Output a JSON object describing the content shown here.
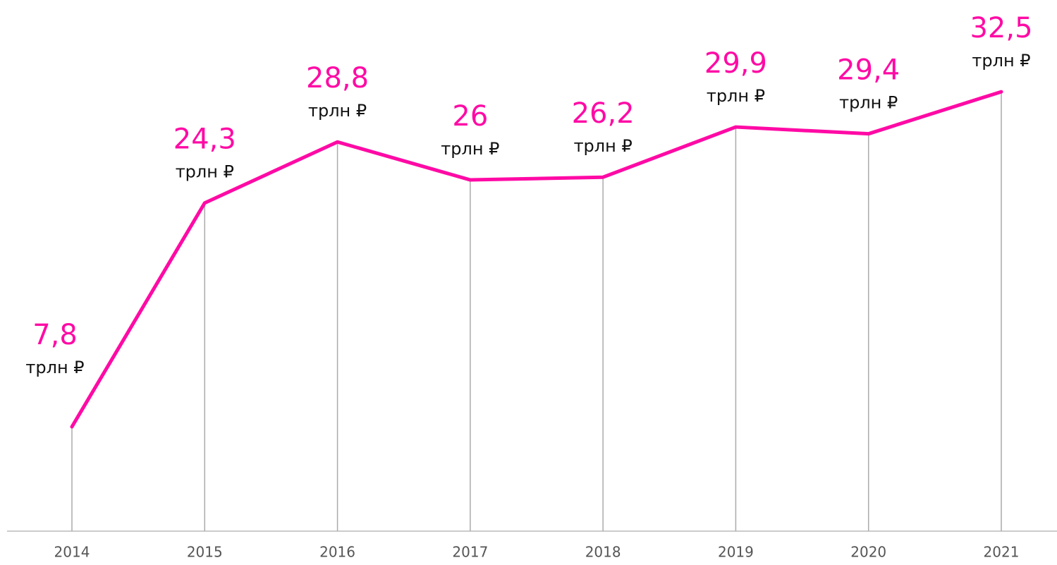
{
  "chart_data": {
    "type": "line",
    "categories": [
      "2014",
      "2015",
      "2016",
      "2017",
      "2018",
      "2019",
      "2020",
      "2021"
    ],
    "series": [
      {
        "color": "#ff0aa5",
        "values": [
          7.8,
          24.3,
          28.8,
          26,
          26.2,
          29.9,
          29.4,
          32.5
        ],
        "value_labels": [
          "7,8",
          "24,3",
          "28,8",
          "26",
          "26,2",
          "29,9",
          "29,4",
          "32,5"
        ]
      }
    ],
    "unit": "трлн ₽",
    "ylim": [
      0,
      35
    ]
  }
}
